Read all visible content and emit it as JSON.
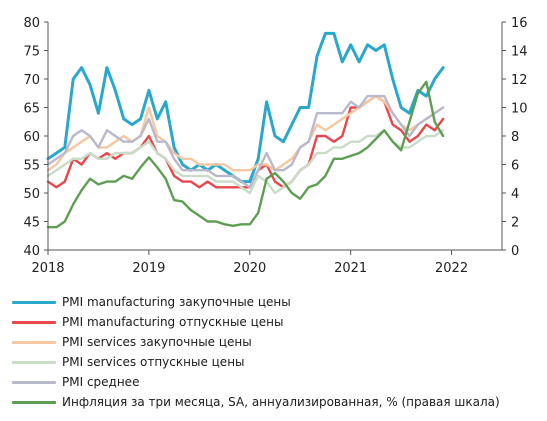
{
  "chart_data": {
    "type": "line",
    "x_start": 2018.0,
    "x_step_months": 1,
    "xlim": [
      2018,
      2022.5
    ],
    "ylim_left": [
      40,
      80
    ],
    "ylim_right": [
      0,
      16
    ],
    "x_ticks": [
      "2018",
      "2019",
      "2020",
      "2021",
      "2022"
    ],
    "y_ticks_left": [
      "40",
      "45",
      "50",
      "55",
      "60",
      "65",
      "70",
      "75",
      "80"
    ],
    "y_ticks_right": [
      "0",
      "2",
      "4",
      "6",
      "8",
      "10",
      "12",
      "14",
      "16"
    ],
    "series": [
      {
        "name": "PMI manufacturing закупочные цены",
        "color": "#2aa8cc",
        "axis": "left",
        "values": [
          56,
          57,
          58,
          70,
          72,
          69,
          64,
          72,
          68,
          63,
          62,
          63,
          68,
          63,
          66,
          58,
          55,
          54,
          55,
          54,
          55,
          54,
          53,
          52,
          52,
          56,
          66,
          60,
          59,
          62,
          65,
          65,
          74,
          78,
          78,
          73,
          76,
          73,
          76,
          75,
          76,
          70,
          65,
          64,
          68,
          67,
          70,
          72
        ]
      },
      {
        "name": "PMI manufacturing отпускные цены",
        "color": "#e8474c",
        "axis": "left",
        "values": [
          52,
          51,
          52,
          56,
          55,
          57,
          56,
          57,
          56,
          57,
          57,
          58,
          60,
          57,
          56,
          53,
          52,
          52,
          51,
          52,
          51,
          51,
          51,
          51,
          51,
          54,
          55,
          52,
          51,
          52,
          54,
          55,
          60,
          60,
          59,
          60,
          65,
          65,
          66,
          67,
          66,
          62,
          61,
          59,
          60,
          62,
          61,
          63
        ]
      },
      {
        "name": "PMI services закупочные цены",
        "color": "#f6c7a0",
        "axis": "left",
        "values": [
          54,
          55,
          57,
          58,
          59,
          60,
          58,
          58,
          59,
          60,
          59,
          60,
          65,
          60,
          59,
          57,
          56,
          56,
          55,
          55,
          55,
          55,
          54,
          54,
          54,
          55,
          55,
          54,
          55,
          56,
          58,
          59,
          62,
          61,
          62,
          63,
          64,
          65,
          66,
          67,
          66,
          64,
          62,
          61,
          62,
          63,
          64,
          65
        ]
      },
      {
        "name": "PMI services отпускные цены",
        "color": "#c8dcc8",
        "axis": "left",
        "values": [
          53,
          54,
          55,
          56,
          56,
          57,
          56,
          56,
          57,
          57,
          57,
          58,
          59,
          57,
          56,
          54,
          53,
          53,
          53,
          53,
          52,
          52,
          52,
          51,
          50,
          53,
          52,
          50,
          51,
          52,
          54,
          55,
          57,
          57,
          58,
          58,
          59,
          59,
          60,
          60,
          61,
          59,
          58,
          58,
          59,
          60,
          60,
          61
        ]
      },
      {
        "name": "PMI среднее",
        "color": "#b9b9cc",
        "axis": "left",
        "values": [
          55,
          56,
          57,
          60,
          61,
          60,
          58,
          61,
          60,
          59,
          59,
          60,
          63,
          59,
          59,
          56,
          54,
          54,
          54,
          54,
          53,
          53,
          53,
          52,
          51,
          54,
          57,
          54,
          54,
          55,
          58,
          59,
          64,
          64,
          64,
          64,
          66,
          65,
          67,
          67,
          67,
          64,
          62,
          60,
          62,
          63,
          64,
          65
        ]
      },
      {
        "name": "Инфляция за три месяца, SA, аннуализированная, % (правая шкала)",
        "color": "#5e9e52",
        "axis": "right",
        "values": [
          1.6,
          1.6,
          2.0,
          3.2,
          4.2,
          5.0,
          4.6,
          4.8,
          4.8,
          5.2,
          5.0,
          5.8,
          6.5,
          5.8,
          5.0,
          3.5,
          3.4,
          2.8,
          2.4,
          2.0,
          2.0,
          1.8,
          1.7,
          1.8,
          1.8,
          2.6,
          5.0,
          5.4,
          4.8,
          4.0,
          3.6,
          4.4,
          4.6,
          5.2,
          6.4,
          6.4,
          6.6,
          6.8,
          7.2,
          7.8,
          8.4,
          7.6,
          7.0,
          9.0,
          11.0,
          11.8,
          9.0,
          8.0
        ]
      }
    ]
  }
}
